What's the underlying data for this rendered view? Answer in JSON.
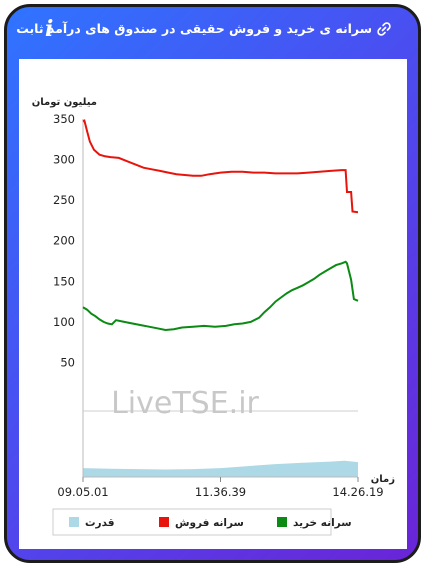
{
  "header": {
    "title": "سرانه ی خرید و فروش حقیقی در صندوق های درآمد ثابت",
    "link_icon": "link-icon",
    "info_icon": "info-icon",
    "info_glyph": "i"
  },
  "watermark": "LiveTSE.ir",
  "colors": {
    "sell": "#e8140c",
    "buy": "#0b8a14",
    "power": "#add8e6",
    "frame_start": "#2f74ff",
    "frame_end": "#6a24d8"
  },
  "chart_data": {
    "type": "line",
    "ylabel": "میلیون تومان",
    "xlabel": "زمان",
    "ylim": [
      0,
      350
    ],
    "yticks": [
      50,
      100,
      150,
      200,
      250,
      300,
      350
    ],
    "x_ticks": [
      "09.05.01",
      "11.36.39",
      "14.26.19"
    ],
    "x_tick_positions": [
      0,
      0.5,
      1
    ],
    "grid": false,
    "legend_position": "bottom",
    "legend": [
      {
        "name": "سرانه خرید",
        "color": "#0b8a14"
      },
      {
        "name": "سرانه فروش",
        "color": "#e8140c"
      },
      {
        "name": "قدرت",
        "color": "#add8e6"
      }
    ],
    "series": [
      {
        "name": "سرانه فروش",
        "color": "#e8140c",
        "x": [
          0,
          0.005,
          0.015,
          0.025,
          0.04,
          0.06,
          0.08,
          0.1,
          0.13,
          0.16,
          0.19,
          0.22,
          0.25,
          0.28,
          0.31,
          0.34,
          0.37,
          0.4,
          0.43,
          0.46,
          0.5,
          0.54,
          0.58,
          0.62,
          0.66,
          0.7,
          0.74,
          0.78,
          0.82,
          0.86,
          0.9,
          0.94,
          0.955,
          0.96,
          0.975,
          0.98,
          1.0
        ],
        "values": [
          347,
          348,
          335,
          322,
          312,
          306,
          304,
          303,
          302,
          298,
          294,
          290,
          288,
          286,
          284,
          282,
          281,
          280,
          280,
          282,
          284,
          285,
          285,
          284,
          284,
          283,
          283,
          283,
          284,
          285,
          286,
          287,
          287,
          260,
          260,
          236,
          235
        ]
      },
      {
        "name": "سرانه خرید",
        "color": "#0b8a14",
        "x": [
          0,
          0.015,
          0.03,
          0.045,
          0.06,
          0.075,
          0.09,
          0.105,
          0.12,
          0.15,
          0.18,
          0.21,
          0.24,
          0.27,
          0.3,
          0.33,
          0.36,
          0.4,
          0.44,
          0.48,
          0.52,
          0.55,
          0.58,
          0.61,
          0.64,
          0.66,
          0.68,
          0.7,
          0.72,
          0.74,
          0.76,
          0.78,
          0.8,
          0.82,
          0.84,
          0.86,
          0.88,
          0.9,
          0.92,
          0.94,
          0.955,
          0.96,
          0.975,
          0.985,
          1.0
        ],
        "values": [
          118,
          115,
          110,
          107,
          103,
          100,
          98,
          97,
          102,
          100,
          98,
          96,
          94,
          92,
          90,
          91,
          93,
          94,
          95,
          94,
          95,
          97,
          98,
          100,
          105,
          112,
          118,
          125,
          130,
          135,
          139,
          142,
          145,
          149,
          153,
          158,
          162,
          166,
          170,
          172,
          174,
          172,
          152,
          128,
          126
        ]
      }
    ],
    "power_area": {
      "name": "قدرت",
      "color": "#add8e6",
      "x": [
        0,
        0.1,
        0.2,
        0.3,
        0.4,
        0.5,
        0.6,
        0.7,
        0.8,
        0.9,
        0.95,
        1.0
      ],
      "values": [
        0.45,
        0.42,
        0.4,
        0.38,
        0.4,
        0.45,
        0.55,
        0.65,
        0.72,
        0.78,
        0.82,
        0.75
      ]
    }
  }
}
